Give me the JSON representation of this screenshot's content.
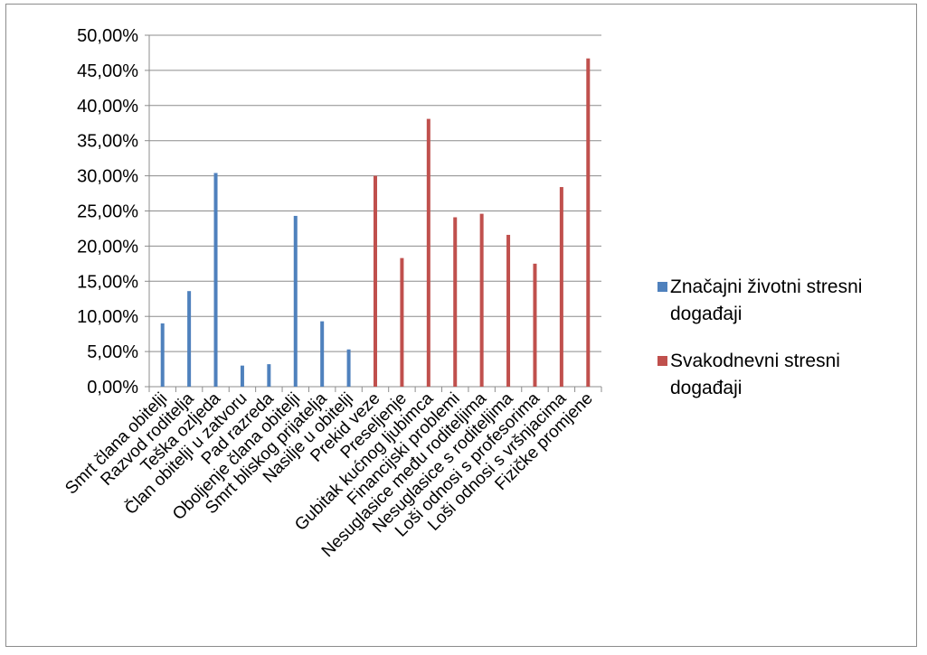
{
  "chart_data": {
    "type": "bar",
    "ylim": [
      0,
      0.5
    ],
    "yticks": [
      "0,00%",
      "5,00%",
      "10,00%",
      "15,00%",
      "20,00%",
      "25,00%",
      "30,00%",
      "35,00%",
      "40,00%",
      "45,00%",
      "50,00%"
    ],
    "grid": true,
    "legend_position": "right",
    "categories": [
      "Smrt člana obitelji",
      "Razvod roditelja",
      "Teška ozljeda",
      "Član obitelji u zatvoru",
      "Pad razreda",
      "Oboljenje člana obitelji",
      "Smrt bliskog prijatelja",
      "Nasilje u obitelji",
      "Prekid veze",
      "Preseljenje",
      "Gubitak kućnog ljubimca",
      "Financijski problemi",
      "Nesuglasice među roditeljima",
      "Nesuglasice s roditeljima",
      "Loši odnosi s profesorima",
      "Loši odnosi s vršnjacima",
      "Fizičke promjene"
    ],
    "series": [
      {
        "name": "Značajni životni stresni događaji",
        "color": "#4f81bd",
        "values": [
          0.09,
          0.136,
          0.304,
          0.03,
          0.032,
          0.243,
          0.093,
          0.053,
          null,
          null,
          null,
          null,
          null,
          null,
          null,
          null,
          null
        ]
      },
      {
        "name": "Svakodnevni stresni događaji",
        "color": "#c0504d",
        "values": [
          null,
          null,
          null,
          null,
          null,
          null,
          null,
          null,
          0.3,
          0.183,
          0.381,
          0.241,
          0.246,
          0.216,
          0.175,
          0.284,
          0.467
        ]
      }
    ]
  }
}
